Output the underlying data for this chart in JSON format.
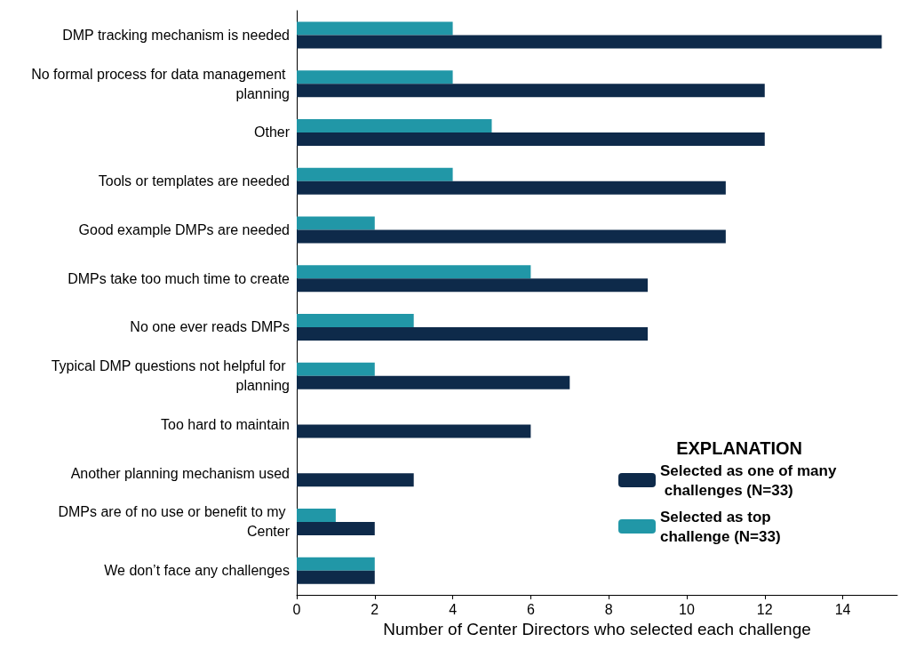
{
  "chart_data": {
    "type": "bar",
    "orientation": "horizontal",
    "xlabel": "Number of Center Directors who selected each challenge",
    "legend_title": "EXPLANATION",
    "legend": "bottom right",
    "grid": false,
    "categories": [
      "DMP tracking mechanism is needed",
      "No formal process for data management planning",
      "Other",
      "Tools or templates are needed",
      "Good example DMPs are needed",
      "DMPs take too much time to create",
      "No one ever reads DMPs",
      "Typical DMP questions not helpful for planning",
      "Too hard to maintain",
      "Another planning mechanism used",
      "DMPs are of no use or benefit to my Center",
      "We don’t face any challenges"
    ],
    "series": [
      {
        "name": "Selected as one of many challenges (N=33)",
        "color": "#0e2a4a",
        "values": [
          15,
          12,
          12,
          11,
          11,
          9,
          9,
          7,
          6,
          3,
          2,
          2
        ]
      },
      {
        "name": "Selected as top challenge (N=33)",
        "color": "#2197a7",
        "values": [
          4,
          4,
          5,
          4,
          2,
          6,
          3,
          2,
          0,
          0,
          1,
          2
        ]
      }
    ],
    "xlim": [
      0,
      15.4
    ],
    "xticks": [
      0,
      2,
      4,
      6,
      8,
      10,
      12,
      14
    ]
  }
}
